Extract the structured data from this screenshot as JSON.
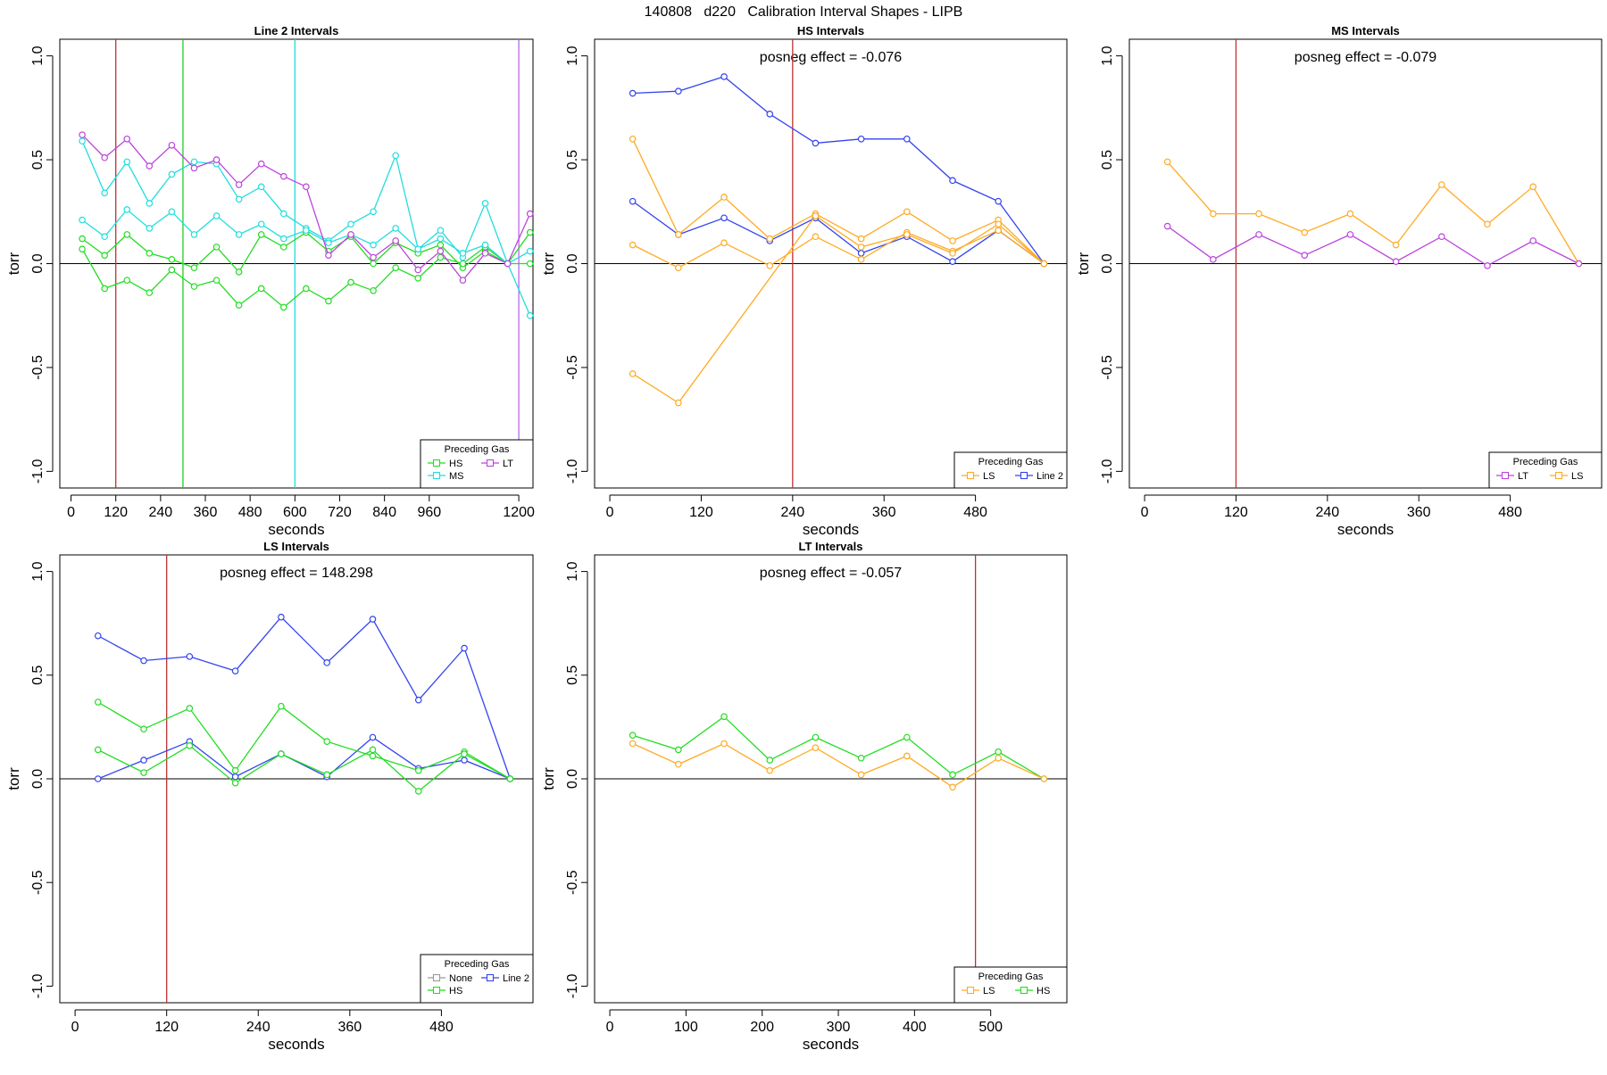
{
  "figure_title": "140808   d220   Calibration Interval Shapes - LIPB",
  "colors": {
    "HS": "#22dd22",
    "MS": "#22dddd",
    "LT": "#bb44dd",
    "LS": "#ffaa22",
    "Line 2": "#3344ee",
    "None": "#999999",
    "marker_red": "#bb3333",
    "marker_green": "#22cc22",
    "marker_cyan": "#22dddd",
    "marker_purple": "#bb66ee"
  },
  "chart_data": [
    {
      "type": "line",
      "title": "Line 2 Intervals",
      "xlabel": "seconds",
      "ylabel": "torr",
      "xlim": [
        -30,
        1238
      ],
      "ylim": [
        -1.08,
        1.08
      ],
      "xticks": [
        0,
        120,
        240,
        360,
        480,
        600,
        720,
        840,
        960,
        1200
      ],
      "yticks": [
        1.0,
        0.5,
        0.0,
        -0.5,
        -1.0
      ],
      "ytick_labels": [
        "1.0",
        "0.5",
        "0.0",
        "-0.5",
        "-1.0"
      ],
      "posneg": "",
      "vlines": [
        {
          "x": 120,
          "color": "marker_red"
        },
        {
          "x": 300,
          "color": "marker_green"
        },
        {
          "x": 600,
          "color": "marker_cyan"
        },
        {
          "x": 1200,
          "color": "marker_purple"
        }
      ],
      "series": [
        {
          "name": "HS",
          "color": "HS",
          "x": [
            30,
            90,
            150,
            210,
            270,
            330,
            390,
            450,
            510,
            570,
            630,
            690,
            750,
            810,
            870,
            930,
            990,
            1050,
            1110,
            1170,
            1230
          ],
          "y": [
            0.12,
            0.04,
            0.14,
            0.05,
            0.02,
            -0.02,
            0.08,
            -0.04,
            0.14,
            0.08,
            0.15,
            0.06,
            0.13,
            0.0,
            0.1,
            0.05,
            0.09,
            -0.02,
            0.06,
            0.0,
            0.15
          ]
        },
        {
          "name": "HS",
          "color": "HS",
          "x": [
            30,
            90,
            150,
            210,
            270,
            330,
            390,
            450,
            510,
            570,
            630,
            690,
            750,
            810,
            870,
            930,
            990,
            1050,
            1110,
            1170,
            1230
          ],
          "y": [
            0.07,
            -0.12,
            -0.08,
            -0.14,
            -0.03,
            -0.11,
            -0.08,
            -0.2,
            -0.12,
            -0.21,
            -0.12,
            -0.18,
            -0.09,
            -0.13,
            -0.02,
            -0.07,
            0.03,
            0.0,
            0.08,
            0.0,
            0.0
          ]
        },
        {
          "name": "MS",
          "color": "MS",
          "x": [
            30,
            90,
            150,
            210,
            270,
            330,
            390,
            450,
            510,
            570,
            630,
            690,
            750,
            810,
            870,
            930,
            990,
            1050,
            1110,
            1170,
            1230
          ],
          "y": [
            0.59,
            0.34,
            0.49,
            0.29,
            0.43,
            0.49,
            0.48,
            0.31,
            0.37,
            0.24,
            0.17,
            0.11,
            0.19,
            0.25,
            0.52,
            0.07,
            0.16,
            0.03,
            0.29,
            0.0,
            -0.25
          ]
        },
        {
          "name": "MS",
          "color": "MS",
          "x": [
            30,
            90,
            150,
            210,
            270,
            330,
            390,
            450,
            510,
            570,
            630,
            690,
            750,
            810,
            870,
            930,
            990,
            1050,
            1110,
            1170,
            1230
          ],
          "y": [
            0.21,
            0.13,
            0.26,
            0.17,
            0.25,
            0.14,
            0.23,
            0.14,
            0.19,
            0.12,
            0.16,
            0.1,
            0.14,
            0.09,
            0.17,
            0.07,
            0.12,
            0.05,
            0.09,
            0.0,
            0.06
          ]
        },
        {
          "name": "LT",
          "color": "LT",
          "x": [
            30,
            90,
            150,
            210,
            270,
            330,
            390,
            450,
            510,
            570,
            630,
            690,
            750,
            810,
            870,
            930,
            990,
            1050,
            1110,
            1170,
            1230
          ],
          "y": [
            0.62,
            0.51,
            0.6,
            0.47,
            0.57,
            0.46,
            0.5,
            0.38,
            0.48,
            0.42,
            0.37,
            0.04,
            0.14,
            0.03,
            0.11,
            -0.03,
            0.06,
            -0.08,
            0.05,
            0.0,
            0.24
          ]
        }
      ],
      "legend": {
        "title": "Preceding Gas",
        "rows": [
          [
            {
              "label": "HS",
              "color": "HS"
            },
            {
              "label": "LT",
              "color": "LT"
            }
          ],
          [
            {
              "label": "MS",
              "color": "MS"
            }
          ]
        ]
      }
    },
    {
      "type": "line",
      "title": "HS Intervals",
      "xlabel": "seconds",
      "ylabel": "torr",
      "xlim": [
        -20,
        600
      ],
      "ylim": [
        -1.08,
        1.08
      ],
      "xticks": [
        0,
        120,
        240,
        360,
        480
      ],
      "yticks": [
        1.0,
        0.5,
        0.0,
        -0.5,
        -1.0
      ],
      "ytick_labels": [
        "1.0",
        "0.5",
        "0.0",
        "-0.5",
        "-1.0"
      ],
      "posneg": "posneg effect = -0.076",
      "vlines": [
        {
          "x": 240,
          "color": "marker_red"
        }
      ],
      "series": [
        {
          "name": "Line 2",
          "color": "Line 2",
          "x": [
            30,
            90,
            150,
            210,
            270,
            330,
            390,
            450,
            510,
            570
          ],
          "y": [
            0.82,
            0.83,
            0.9,
            0.72,
            0.58,
            0.6,
            0.6,
            0.4,
            0.3,
            0.0
          ]
        },
        {
          "name": "Line 2",
          "color": "Line 2",
          "x": [
            30,
            90,
            150,
            210,
            270,
            330,
            390,
            450,
            510,
            570
          ],
          "y": [
            0.3,
            0.14,
            0.22,
            0.11,
            0.22,
            0.05,
            0.13,
            0.01,
            0.16,
            0.0
          ]
        },
        {
          "name": "LS",
          "color": "LS",
          "x": [
            30,
            90,
            150,
            210,
            270,
            330,
            390,
            450,
            510,
            570
          ],
          "y": [
            0.6,
            0.14,
            0.32,
            0.12,
            0.24,
            0.12,
            0.25,
            0.11,
            0.21,
            0.0
          ]
        },
        {
          "name": "LS",
          "color": "LS",
          "x": [
            30,
            90,
            150,
            210,
            270,
            330,
            390,
            450,
            510,
            570
          ],
          "y": [
            0.09,
            -0.02,
            0.1,
            -0.01,
            0.13,
            0.02,
            0.15,
            0.06,
            0.16,
            0.0
          ]
        },
        {
          "name": "LS",
          "color": "LS",
          "x": [
            30,
            90,
            270,
            330,
            390,
            450,
            510,
            570
          ],
          "y": [
            -0.53,
            -0.67,
            0.23,
            0.08,
            0.14,
            0.05,
            0.19,
            0.0
          ]
        }
      ],
      "legend": {
        "title": "Preceding Gas",
        "rows": [
          [
            {
              "label": "LS",
              "color": "LS"
            },
            {
              "label": "Line 2",
              "color": "Line 2"
            }
          ]
        ]
      }
    },
    {
      "type": "line",
      "title": "MS Intervals",
      "xlabel": "seconds",
      "ylabel": "torr",
      "xlim": [
        -20,
        600
      ],
      "ylim": [
        -1.08,
        1.08
      ],
      "xticks": [
        0,
        120,
        240,
        360,
        480
      ],
      "yticks": [
        1.0,
        0.5,
        0.0,
        -0.5,
        -1.0
      ],
      "ytick_labels": [
        "1.0",
        "0.5",
        "0.0",
        "-0.5",
        "-1.0"
      ],
      "posneg": "posneg effect = -0.079",
      "vlines": [
        {
          "x": 120,
          "color": "marker_red"
        }
      ],
      "series": [
        {
          "name": "LS",
          "color": "LS",
          "x": [
            30,
            90,
            150,
            210,
            270,
            330,
            390,
            450,
            510,
            570
          ],
          "y": [
            0.49,
            0.24,
            0.24,
            0.15,
            0.24,
            0.09,
            0.38,
            0.19,
            0.37,
            0.0
          ]
        },
        {
          "name": "LT",
          "color": "LT",
          "x": [
            30,
            90,
            150,
            210,
            270,
            330,
            390,
            450,
            510,
            570
          ],
          "y": [
            0.18,
            0.02,
            0.14,
            0.04,
            0.14,
            0.01,
            0.13,
            -0.01,
            0.11,
            0.0
          ]
        }
      ],
      "legend": {
        "title": "Preceding Gas",
        "rows": [
          [
            {
              "label": "LT",
              "color": "LT"
            },
            {
              "label": "LS",
              "color": "LS"
            }
          ]
        ]
      }
    },
    {
      "type": "line",
      "title": "LS Intervals",
      "xlabel": "seconds",
      "ylabel": "torr",
      "xlim": [
        -20,
        600
      ],
      "ylim": [
        -1.08,
        1.08
      ],
      "xticks": [
        0,
        120,
        240,
        360,
        480
      ],
      "yticks": [
        1.0,
        0.5,
        0.0,
        -0.5,
        -1.0
      ],
      "ytick_labels": [
        "1.0",
        "0.5",
        "0.0",
        "-0.5",
        "-1.0"
      ],
      "posneg": "posneg effect = 148.298",
      "vlines": [
        {
          "x": 120,
          "color": "marker_red"
        }
      ],
      "series": [
        {
          "name": "Line 2",
          "color": "Line 2",
          "x": [
            30,
            90,
            150,
            210,
            270,
            330,
            390,
            450,
            510,
            570
          ],
          "y": [
            0.69,
            0.57,
            0.59,
            0.52,
            0.78,
            0.56,
            0.77,
            0.38,
            0.63,
            0.0
          ]
        },
        {
          "name": "Line 2",
          "color": "Line 2",
          "x": [
            30,
            90,
            150,
            210,
            270,
            330,
            390,
            450,
            510,
            570
          ],
          "y": [
            0.0,
            0.09,
            0.18,
            0.01,
            0.12,
            0.01,
            0.2,
            0.05,
            0.09,
            0.0
          ]
        },
        {
          "name": "HS",
          "color": "HS",
          "x": [
            30,
            90,
            150,
            210,
            270,
            330,
            390,
            450,
            510,
            570
          ],
          "y": [
            0.37,
            0.24,
            0.34,
            0.04,
            0.35,
            0.18,
            0.11,
            0.04,
            0.13,
            0.0
          ]
        },
        {
          "name": "HS",
          "color": "HS",
          "x": [
            30,
            90,
            150,
            210,
            270,
            330,
            390,
            450,
            510,
            570
          ],
          "y": [
            0.14,
            0.03,
            0.16,
            -0.02,
            0.12,
            0.02,
            0.14,
            -0.06,
            0.12,
            0.0
          ]
        }
      ],
      "legend": {
        "title": "Preceding Gas",
        "rows": [
          [
            {
              "label": "None",
              "color": "None"
            },
            {
              "label": "Line 2",
              "color": "Line 2"
            }
          ],
          [
            {
              "label": "HS",
              "color": "HS"
            }
          ]
        ]
      }
    },
    {
      "type": "line",
      "title": "LT Intervals",
      "xlabel": "seconds",
      "ylabel": "torr",
      "xlim": [
        -20,
        600
      ],
      "ylim": [
        -1.08,
        1.08
      ],
      "xticks": [
        0,
        100,
        200,
        300,
        400,
        500
      ],
      "yticks": [
        1.0,
        0.5,
        0.0,
        -0.5,
        -1.0
      ],
      "ytick_labels": [
        "1.0",
        "0.5",
        "0.0",
        "-0.5",
        "-1.0"
      ],
      "posneg": "posneg effect = -0.057",
      "vlines": [
        {
          "x": 480,
          "color": "marker_red"
        }
      ],
      "series": [
        {
          "name": "HS",
          "color": "HS",
          "x": [
            30,
            90,
            150,
            210,
            270,
            330,
            390,
            450,
            510,
            570
          ],
          "y": [
            0.21,
            0.14,
            0.3,
            0.09,
            0.2,
            0.1,
            0.2,
            0.02,
            0.13,
            0.0
          ]
        },
        {
          "name": "LS",
          "color": "LS",
          "x": [
            30,
            90,
            150,
            210,
            270,
            330,
            390,
            450,
            510,
            570
          ],
          "y": [
            0.17,
            0.07,
            0.17,
            0.04,
            0.15,
            0.02,
            0.11,
            -0.04,
            0.1,
            0.0
          ]
        }
      ],
      "legend": {
        "title": "Preceding Gas",
        "rows": [
          [
            {
              "label": "LS",
              "color": "LS"
            },
            {
              "label": "HS",
              "color": "HS"
            }
          ]
        ]
      }
    }
  ]
}
